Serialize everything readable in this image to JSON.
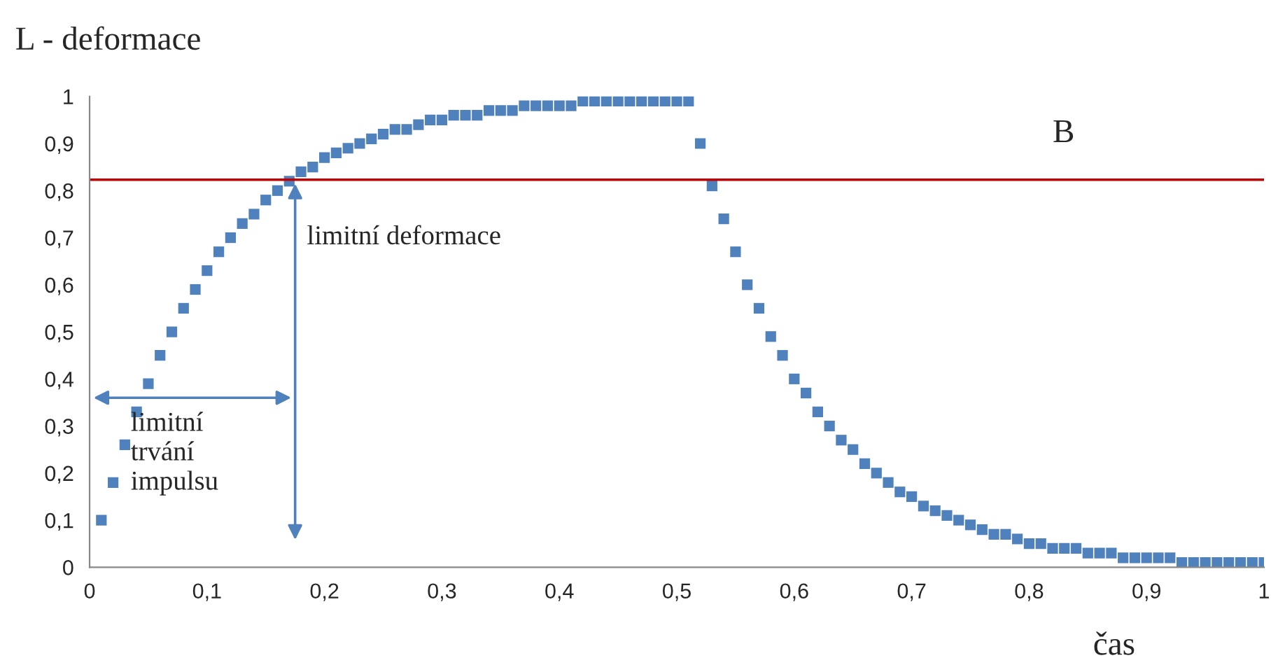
{
  "chart_data": {
    "type": "scatter",
    "ylabel": "L - deformace",
    "xlabel": "čas",
    "x": [
      0.01,
      0.02,
      0.03,
      0.04,
      0.05,
      0.06,
      0.07,
      0.08,
      0.09,
      0.1,
      0.11,
      0.12,
      0.13,
      0.14,
      0.15,
      0.16,
      0.17,
      0.18,
      0.19,
      0.2,
      0.21,
      0.22,
      0.23,
      0.24,
      0.25,
      0.26,
      0.27,
      0.28,
      0.29,
      0.3,
      0.31,
      0.32,
      0.33,
      0.34,
      0.35,
      0.36,
      0.37,
      0.38,
      0.39,
      0.4,
      0.41,
      0.42,
      0.43,
      0.44,
      0.45,
      0.46,
      0.47,
      0.48,
      0.49,
      0.5,
      0.51,
      0.52,
      0.53,
      0.54,
      0.55,
      0.56,
      0.57,
      0.58,
      0.59,
      0.6,
      0.61,
      0.62,
      0.63,
      0.64,
      0.65,
      0.66,
      0.67,
      0.68,
      0.69,
      0.7,
      0.71,
      0.72,
      0.73,
      0.74,
      0.75,
      0.76,
      0.77,
      0.78,
      0.79,
      0.8,
      0.81,
      0.82,
      0.83,
      0.84,
      0.85,
      0.86,
      0.87,
      0.88,
      0.89,
      0.9,
      0.91,
      0.92,
      0.93,
      0.94,
      0.95,
      0.96,
      0.97,
      0.98,
      0.99,
      1.0
    ],
    "series": [
      {
        "color": "#4f81bd",
        "values": [
          0.1,
          0.18,
          0.26,
          0.33,
          0.39,
          0.45,
          0.5,
          0.55,
          0.59,
          0.63,
          0.67,
          0.7,
          0.73,
          0.75,
          0.78,
          0.8,
          0.82,
          0.84,
          0.85,
          0.87,
          0.88,
          0.89,
          0.9,
          0.91,
          0.92,
          0.93,
          0.93,
          0.94,
          0.95,
          0.95,
          0.96,
          0.96,
          0.96,
          0.97,
          0.97,
          0.97,
          0.98,
          0.98,
          0.98,
          0.98,
          0.98,
          0.99,
          0.99,
          0.99,
          0.99,
          0.99,
          0.99,
          0.99,
          0.99,
          0.99,
          0.99,
          0.9,
          0.81,
          0.74,
          0.67,
          0.6,
          0.55,
          0.49,
          0.45,
          0.4,
          0.37,
          0.33,
          0.3,
          0.27,
          0.25,
          0.22,
          0.2,
          0.18,
          0.16,
          0.15,
          0.13,
          0.12,
          0.11,
          0.1,
          0.09,
          0.08,
          0.07,
          0.07,
          0.06,
          0.05,
          0.05,
          0.04,
          0.04,
          0.04,
          0.03,
          0.03,
          0.03,
          0.02,
          0.02,
          0.02,
          0.02,
          0.02,
          0.01,
          0.01,
          0.01,
          0.01,
          0.01,
          0.01,
          0.01,
          0.01
        ]
      }
    ],
    "xlim": [
      0,
      1
    ],
    "ylim": [
      0,
      1
    ],
    "xticks": [
      0,
      {
        "value": 0.1,
        "label": "0,1"
      },
      {
        "value": 0.2,
        "label": "0,2"
      },
      {
        "value": 0.3,
        "label": "0,3"
      },
      {
        "value": 0.4,
        "label": "0,4"
      },
      {
        "value": 0.5,
        "label": "0,5"
      },
      {
        "value": 0.6,
        "label": "0,6"
      },
      {
        "value": 0.7,
        "label": "0,7"
      },
      {
        "value": 0.8,
        "label": "0,8"
      },
      {
        "value": 0.9,
        "label": "0,9"
      },
      1
    ],
    "yticks": [
      0,
      {
        "value": 0.1,
        "label": "0,1"
      },
      {
        "value": 0.2,
        "label": "0,2"
      },
      {
        "value": 0.3,
        "label": "0,3"
      },
      {
        "value": 0.4,
        "label": "0,4"
      },
      {
        "value": 0.5,
        "label": "0,5"
      },
      {
        "value": 0.6,
        "label": "0,6"
      },
      {
        "value": 0.7,
        "label": "0,7"
      },
      {
        "value": 0.8,
        "label": "0,8"
      },
      {
        "value": 0.9,
        "label": "0,9"
      },
      1
    ],
    "ref_lines": [
      {
        "axis": "y",
        "value": 0.823,
        "color": "#c00000"
      }
    ],
    "annotations": [
      "B",
      "limitní deformace",
      "limitní\ntrvání\nimpulsu"
    ],
    "marker": "square",
    "grid": false
  }
}
